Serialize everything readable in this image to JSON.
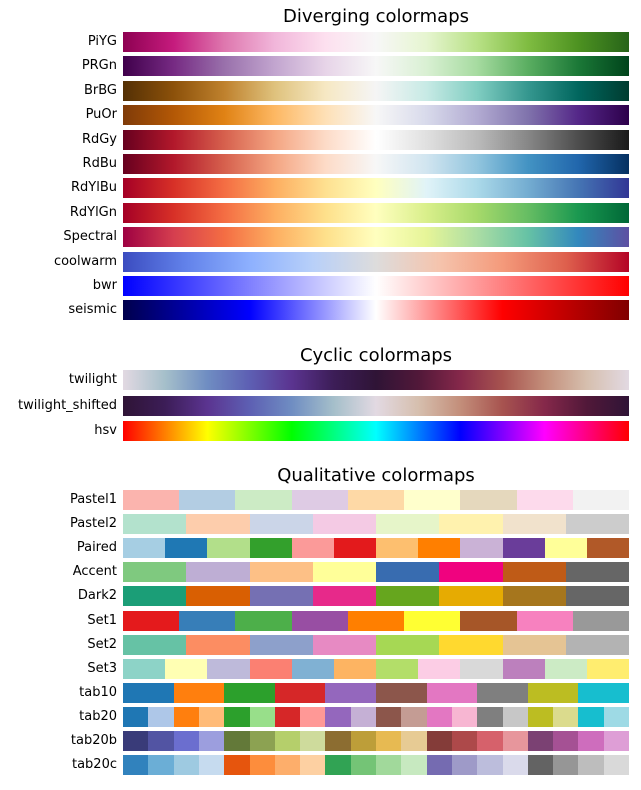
{
  "sections": [
    {
      "title": "Diverging colormaps",
      "kind": "gradient",
      "maps": [
        {
          "name": "PiYG",
          "colors": [
            "#8e0152",
            "#c51b7d",
            "#de77ae",
            "#f1b6da",
            "#fde0ef",
            "#f7f7f7",
            "#e6f5d0",
            "#b8e186",
            "#7fbc41",
            "#4d9221",
            "#276419"
          ]
        },
        {
          "name": "PRGn",
          "colors": [
            "#40004b",
            "#762a83",
            "#9970ab",
            "#c2a5cf",
            "#e7d4e8",
            "#f7f7f7",
            "#d9f0d3",
            "#a6dba0",
            "#5aae61",
            "#1b7837",
            "#00441b"
          ]
        },
        {
          "name": "BrBG",
          "colors": [
            "#543005",
            "#8c510a",
            "#bf812d",
            "#dfc27d",
            "#f6e8c3",
            "#f5f5f5",
            "#c7eae5",
            "#80cdc1",
            "#35978f",
            "#01665e",
            "#003c30"
          ]
        },
        {
          "name": "PuOr",
          "colors": [
            "#7f3b08",
            "#b35806",
            "#e08214",
            "#fdb863",
            "#fee0b6",
            "#f7f7f7",
            "#d8daeb",
            "#b2abd2",
            "#8073ac",
            "#542788",
            "#2d004b"
          ]
        },
        {
          "name": "RdGy",
          "colors": [
            "#67001f",
            "#b2182b",
            "#d6604d",
            "#f4a582",
            "#fddbc7",
            "#ffffff",
            "#e0e0e0",
            "#bababa",
            "#878787",
            "#4d4d4d",
            "#1a1a1a"
          ]
        },
        {
          "name": "RdBu",
          "colors": [
            "#67001f",
            "#b2182b",
            "#d6604d",
            "#f4a582",
            "#fddbc7",
            "#f7f7f7",
            "#d1e5f0",
            "#92c5de",
            "#4393c3",
            "#2166ac",
            "#053061"
          ]
        },
        {
          "name": "RdYlBu",
          "colors": [
            "#a50026",
            "#d73027",
            "#f46d43",
            "#fdae61",
            "#fee090",
            "#ffffbf",
            "#e0f3f8",
            "#abd9e9",
            "#74add1",
            "#4575b4",
            "#313695"
          ]
        },
        {
          "name": "RdYlGn",
          "colors": [
            "#a50026",
            "#d73027",
            "#f46d43",
            "#fdae61",
            "#fee08b",
            "#ffffbf",
            "#d9ef8b",
            "#a6d96a",
            "#66bd63",
            "#1a9850",
            "#006837"
          ]
        },
        {
          "name": "Spectral",
          "colors": [
            "#9e0142",
            "#d53e4f",
            "#f46d43",
            "#fdae61",
            "#fee08b",
            "#ffffbf",
            "#e6f598",
            "#abdda4",
            "#66c2a5",
            "#3288bd",
            "#5e4fa2"
          ]
        },
        {
          "name": "coolwarm",
          "colors": [
            "#3b4cc0",
            "#6282ea",
            "#8db0fe",
            "#b8d0f9",
            "#dddcdc",
            "#f5c4ad",
            "#f49a7b",
            "#de604d",
            "#b40426"
          ]
        },
        {
          "name": "bwr",
          "colors": [
            "#0000ff",
            "#ffffff",
            "#ff0000"
          ]
        },
        {
          "name": "seismic",
          "colors": [
            "#00004c",
            "#0000ff",
            "#ffffff",
            "#ff0000",
            "#800000"
          ]
        }
      ]
    },
    {
      "title": "Cyclic colormaps",
      "kind": "gradient",
      "maps": [
        {
          "name": "twilight",
          "colors": [
            "#e2d9e2",
            "#a5bfca",
            "#6f8dc2",
            "#5d5fb3",
            "#5b3490",
            "#3c1d57",
            "#2f1436",
            "#511839",
            "#85284a",
            "#a7534f",
            "#c38e7a",
            "#d6bfae",
            "#e2d9e2"
          ]
        },
        {
          "name": "twilight_shifted",
          "colors": [
            "#2f1436",
            "#3c1d57",
            "#5b3490",
            "#5d5fb3",
            "#6f8dc2",
            "#a5bfca",
            "#e2d9e2",
            "#d6bfae",
            "#c38e7a",
            "#a7534f",
            "#85284a",
            "#511839",
            "#2f1436"
          ]
        },
        {
          "name": "hsv",
          "colors": [
            "#ff0000",
            "#ffff00",
            "#00ff00",
            "#00ffff",
            "#0000ff",
            "#ff00ff",
            "#ff0000"
          ]
        }
      ]
    },
    {
      "title": "Qualitative colormaps",
      "kind": "discrete",
      "maps": [
        {
          "name": "Pastel1",
          "colors": [
            "#fbb4ae",
            "#b3cde3",
            "#ccebc5",
            "#decbe4",
            "#fed9a6",
            "#ffffcc",
            "#e5d8bd",
            "#fddaec",
            "#f2f2f2"
          ]
        },
        {
          "name": "Pastel2",
          "colors": [
            "#b3e2cd",
            "#fdcdac",
            "#cbd5e8",
            "#f4cae4",
            "#e6f5c9",
            "#fff2ae",
            "#f1e2cc",
            "#cccccc"
          ]
        },
        {
          "name": "Paired",
          "colors": [
            "#a6cee3",
            "#1f78b4",
            "#b2df8a",
            "#33a02c",
            "#fb9a99",
            "#e31a1c",
            "#fdbf6f",
            "#ff7f00",
            "#cab2d6",
            "#6a3d9a",
            "#ffff99",
            "#b15928"
          ]
        },
        {
          "name": "Accent",
          "colors": [
            "#7fc97f",
            "#beaed4",
            "#fdc086",
            "#ffff99",
            "#386cb0",
            "#f0027f",
            "#bf5b17",
            "#666666"
          ]
        },
        {
          "name": "Dark2",
          "colors": [
            "#1b9e77",
            "#d95f02",
            "#7570b3",
            "#e7298a",
            "#66a61e",
            "#e6ab02",
            "#a6761d",
            "#666666"
          ]
        },
        {
          "name": "Set1",
          "colors": [
            "#e41a1c",
            "#377eb8",
            "#4daf4a",
            "#984ea3",
            "#ff7f00",
            "#ffff33",
            "#a65628",
            "#f781bf",
            "#999999"
          ]
        },
        {
          "name": "Set2",
          "colors": [
            "#66c2a5",
            "#fc8d62",
            "#8da0cb",
            "#e78ac3",
            "#a6d854",
            "#ffd92f",
            "#e5c494",
            "#b3b3b3"
          ]
        },
        {
          "name": "Set3",
          "colors": [
            "#8dd3c7",
            "#ffffb3",
            "#bebada",
            "#fb8072",
            "#80b1d3",
            "#fdb462",
            "#b3de69",
            "#fccde5",
            "#d9d9d9",
            "#bc80bd",
            "#ccebc5",
            "#ffed6f"
          ]
        },
        {
          "name": "tab10",
          "colors": [
            "#1f77b4",
            "#ff7f0e",
            "#2ca02c",
            "#d62728",
            "#9467bd",
            "#8c564b",
            "#e377c2",
            "#7f7f7f",
            "#bcbd22",
            "#17becf"
          ]
        },
        {
          "name": "tab20",
          "colors": [
            "#1f77b4",
            "#aec7e8",
            "#ff7f0e",
            "#ffbb78",
            "#2ca02c",
            "#98df8a",
            "#d62728",
            "#ff9896",
            "#9467bd",
            "#c5b0d5",
            "#8c564b",
            "#c49c94",
            "#e377c2",
            "#f7b6d2",
            "#7f7f7f",
            "#c7c7c7",
            "#bcbd22",
            "#dbdb8d",
            "#17becf",
            "#9edae5"
          ]
        },
        {
          "name": "tab20b",
          "colors": [
            "#393b79",
            "#5254a3",
            "#6b6ecf",
            "#9c9ede",
            "#637939",
            "#8ca252",
            "#b5cf6b",
            "#cedb9c",
            "#8c6d31",
            "#bd9e39",
            "#e7ba52",
            "#e7cb94",
            "#843c39",
            "#ad494a",
            "#d6616b",
            "#e7969c",
            "#7b4173",
            "#a55194",
            "#ce6dbd",
            "#de9ed6"
          ]
        },
        {
          "name": "tab20c",
          "colors": [
            "#3182bd",
            "#6baed6",
            "#9ecae1",
            "#c6dbef",
            "#e6550d",
            "#fd8d3c",
            "#fdae6b",
            "#fdd0a2",
            "#31a354",
            "#74c476",
            "#a1d99b",
            "#c7e9c0",
            "#756bb1",
            "#9e9ac8",
            "#bcbddc",
            "#dadaeb",
            "#636363",
            "#969696",
            "#bdbdbd",
            "#d9d9d9"
          ]
        }
      ]
    }
  ],
  "chart_data": {
    "type": "heatmap",
    "panels": [
      {
        "title": "Diverging colormaps",
        "rows": [
          "PiYG",
          "PRGn",
          "BrBG",
          "PuOr",
          "RdGy",
          "RdBu",
          "RdYlBu",
          "RdYlGn",
          "Spectral",
          "coolwarm",
          "bwr",
          "seismic"
        ]
      },
      {
        "title": "Cyclic colormaps",
        "rows": [
          "twilight",
          "twilight_shifted",
          "hsv"
        ]
      },
      {
        "title": "Qualitative colormaps",
        "rows": [
          "Pastel1",
          "Pastel2",
          "Paired",
          "Accent",
          "Dark2",
          "Set1",
          "Set2",
          "Set3",
          "tab10",
          "tab20",
          "tab20b",
          "tab20c"
        ]
      }
    ],
    "x": "gradient 0 to 1 (left to right)",
    "axes_visible": false,
    "grid": false
  }
}
